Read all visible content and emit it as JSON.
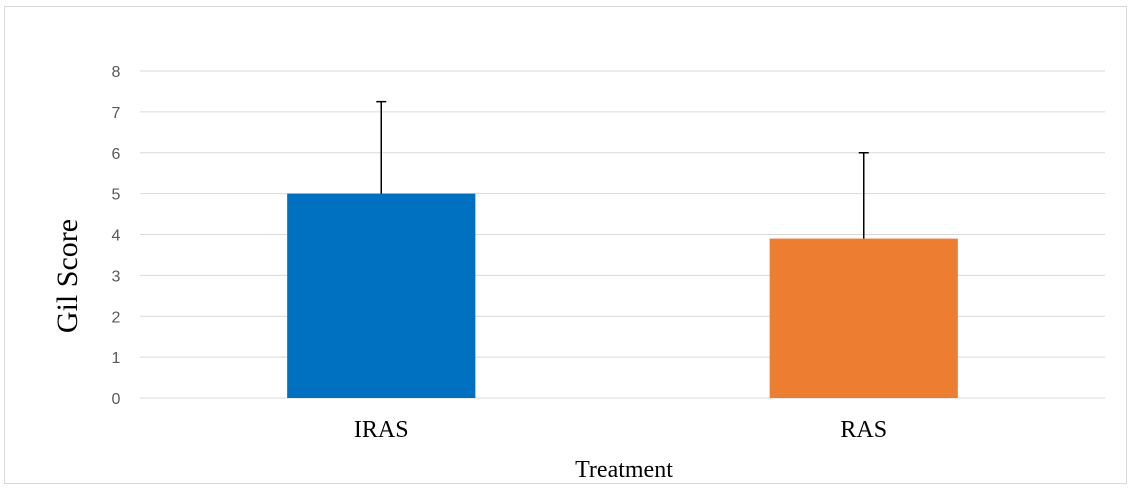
{
  "chart_data": {
    "type": "bar",
    "categories": [
      "IRAS",
      "RAS"
    ],
    "values": [
      5.0,
      3.9
    ],
    "error_upper": [
      2.25,
      2.1
    ],
    "colors": [
      "#0070C0",
      "#ED7D31"
    ],
    "error_color": "#000000",
    "grid_color": "#D9D9D9",
    "title": "",
    "xlabel": "Treatment",
    "ylabel": "Gil Score",
    "ylim": [
      0,
      8
    ],
    "yticks": [
      "0",
      "1",
      "2",
      "3",
      "4",
      "5",
      "6",
      "7",
      "8"
    ],
    "grid": true,
    "legend": "none"
  }
}
